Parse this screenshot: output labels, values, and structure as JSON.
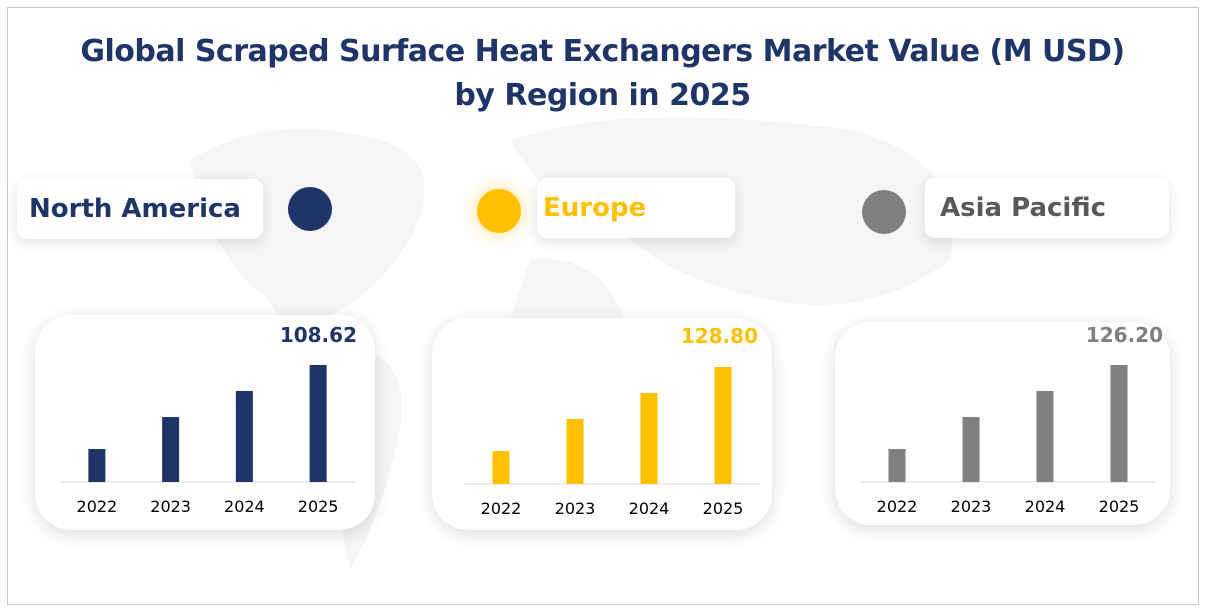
{
  "title_line1": "Global Scraped Surface Heat Exchangers Market Value (M USD)",
  "title_line2": "by Region in 2025",
  "colors": {
    "north_america": "#1f3467",
    "europe": "#ffc000",
    "asia_pacific": "#808080",
    "title": "#1f3467"
  },
  "chart_data": [
    {
      "type": "bar",
      "region": "North America",
      "categories": [
        "2022",
        "2023",
        "2024",
        "2025"
      ],
      "values": [
        30.6,
        60.3,
        84.5,
        108.62
      ],
      "data_label": "108.62",
      "color": "#1f3467"
    },
    {
      "type": "bar",
      "region": "Europe",
      "categories": [
        "2022",
        "2023",
        "2024",
        "2025"
      ],
      "values": [
        36.3,
        71.6,
        100.2,
        128.8
      ],
      "data_label": "128.80",
      "color": "#ffc000"
    },
    {
      "type": "bar",
      "region": "Asia Pacific",
      "categories": [
        "2022",
        "2023",
        "2024",
        "2025"
      ],
      "values": [
        35.6,
        70.1,
        98.2,
        126.2
      ],
      "data_label": "126.20",
      "color": "#808080"
    }
  ]
}
